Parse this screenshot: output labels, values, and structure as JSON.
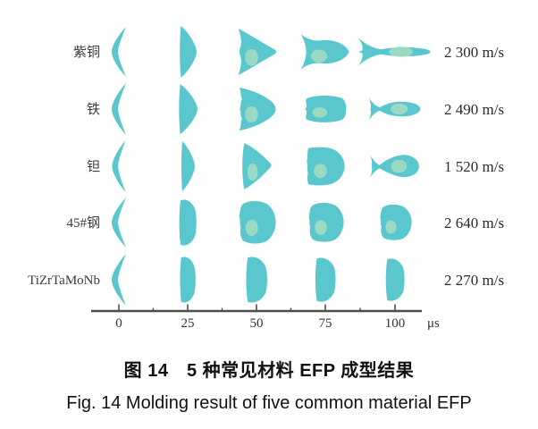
{
  "colors": {
    "shape_fill": "#5AC7CF",
    "shape_patch": "#B5E2C1",
    "axis": "#4d4d4d",
    "material_text": "#3b3b3b",
    "velocity_text": "#2a2a2a",
    "tick_text": "#333333",
    "caption_text": "#111111"
  },
  "figure": {
    "time_axis": {
      "tick_labels": [
        "0",
        "25",
        "50",
        "75",
        "100"
      ],
      "unit": "μs"
    },
    "rows": [
      {
        "material": "紫铜",
        "velocity": "2 300 m/s",
        "shapes": [
          "crescent",
          "lens",
          "arrowhead",
          "dart",
          "fishlong"
        ],
        "sizes": [
          [
            16,
            56
          ],
          [
            20,
            58
          ],
          [
            46,
            52
          ],
          [
            58,
            40
          ],
          [
            82,
            34
          ]
        ]
      },
      {
        "material": "铁",
        "velocity": "2 490 m/s",
        "shapes": [
          "crescent",
          "lens",
          "bluntarrow",
          "pill",
          "fishshort"
        ],
        "sizes": [
          [
            16,
            58
          ],
          [
            22,
            56
          ],
          [
            46,
            50
          ],
          [
            52,
            32
          ],
          [
            60,
            34
          ]
        ]
      },
      {
        "material": "钽",
        "velocity": "1 520 m/s",
        "shapes": [
          "crescent",
          "lens",
          "roundcone",
          "slug",
          "balloon"
        ],
        "sizes": [
          [
            15,
            58
          ],
          [
            16,
            56
          ],
          [
            36,
            54
          ],
          [
            46,
            44
          ],
          [
            56,
            40
          ]
        ]
      },
      {
        "material": "45#钢",
        "velocity": "2 640 m/s",
        "shapes": [
          "crescent",
          "halfdisc",
          "roundblob",
          "roundblob",
          "roundblob"
        ],
        "sizes": [
          [
            16,
            56
          ],
          [
            22,
            54
          ],
          [
            44,
            50
          ],
          [
            42,
            46
          ],
          [
            38,
            42
          ]
        ]
      },
      {
        "material": "TiZrTaMoNb",
        "velocity": "2 270 m/s",
        "shapes": [
          "crescent",
          "halfdisc",
          "halfdisc",
          "halfdisc",
          "halfdisc"
        ],
        "sizes": [
          [
            16,
            58
          ],
          [
            20,
            54
          ],
          [
            27,
            54
          ],
          [
            26,
            52
          ],
          [
            24,
            50
          ]
        ]
      }
    ]
  },
  "caption_zh": "图 14　5 种常见材料 EFP 成型结果",
  "caption_en": "Fig. 14 Molding result of five common material EFP"
}
